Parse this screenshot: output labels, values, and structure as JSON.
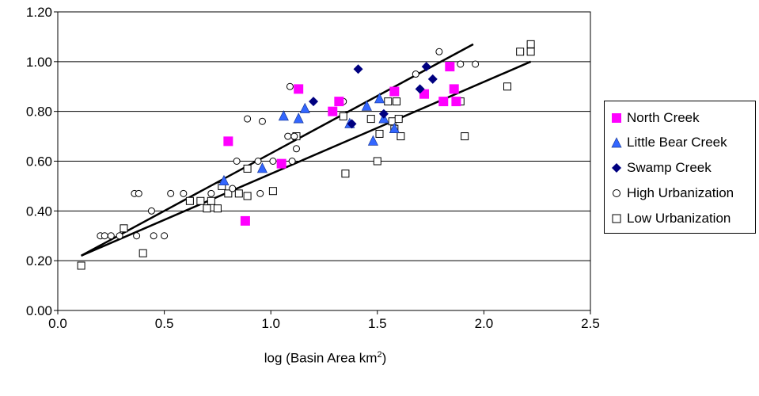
{
  "chart_data": {
    "type": "scatter",
    "xlabel_prefix": "log (Basin Area km",
    "xlabel_sup": "2",
    "xlabel_suffix": ")",
    "ylabel": "",
    "xlim": [
      0,
      2.5
    ],
    "ylim": [
      0,
      1.2
    ],
    "x_ticks": [
      "0.0",
      "0.5",
      "1.0",
      "1.5",
      "2.0",
      "2.5"
    ],
    "y_ticks": [
      "0.00",
      "0.20",
      "0.40",
      "0.60",
      "0.80",
      "1.00",
      "1.20"
    ],
    "grid": "horizontal",
    "legend_position": "right",
    "series": [
      {
        "name": "North Creek",
        "marker": "square-filled",
        "color": "#FF00FF",
        "points": [
          [
            0.8,
            0.68
          ],
          [
            0.88,
            0.36
          ],
          [
            1.05,
            0.59
          ],
          [
            1.13,
            0.89
          ],
          [
            1.29,
            0.8
          ],
          [
            1.32,
            0.84
          ],
          [
            1.58,
            0.88
          ],
          [
            1.72,
            0.87
          ],
          [
            1.81,
            0.84
          ],
          [
            1.84,
            0.98
          ],
          [
            1.86,
            0.89
          ],
          [
            1.87,
            0.84
          ]
        ]
      },
      {
        "name": "Little Bear Creek",
        "marker": "triangle-filled",
        "color": "#3366FF",
        "points": [
          [
            0.78,
            0.52
          ],
          [
            0.96,
            0.57
          ],
          [
            1.06,
            0.78
          ],
          [
            1.13,
            0.77
          ],
          [
            1.16,
            0.81
          ],
          [
            1.37,
            0.75
          ],
          [
            1.45,
            0.82
          ],
          [
            1.48,
            0.68
          ],
          [
            1.51,
            0.85
          ],
          [
            1.53,
            0.77
          ],
          [
            1.58,
            0.73
          ]
        ]
      },
      {
        "name": "Swamp Creek",
        "marker": "diamond-filled",
        "color": "#000080",
        "points": [
          [
            1.2,
            0.84
          ],
          [
            1.38,
            0.75
          ],
          [
            1.41,
            0.97
          ],
          [
            1.53,
            0.79
          ],
          [
            1.7,
            0.89
          ],
          [
            1.73,
            0.98
          ],
          [
            1.76,
            0.93
          ]
        ]
      },
      {
        "name": "High Urbanization",
        "marker": "circle-open",
        "color": "#000000",
        "points": [
          [
            0.2,
            0.3
          ],
          [
            0.22,
            0.3
          ],
          [
            0.25,
            0.3
          ],
          [
            0.29,
            0.3
          ],
          [
            0.36,
            0.47
          ],
          [
            0.37,
            0.3
          ],
          [
            0.38,
            0.47
          ],
          [
            0.44,
            0.4
          ],
          [
            0.45,
            0.3
          ],
          [
            0.5,
            0.3
          ],
          [
            0.53,
            0.47
          ],
          [
            0.59,
            0.47
          ],
          [
            0.72,
            0.47
          ],
          [
            0.82,
            0.49
          ],
          [
            0.84,
            0.6
          ],
          [
            0.89,
            0.77
          ],
          [
            0.94,
            0.6
          ],
          [
            0.95,
            0.47
          ],
          [
            0.96,
            0.76
          ],
          [
            1.01,
            0.6
          ],
          [
            1.08,
            0.7
          ],
          [
            1.09,
            0.9
          ],
          [
            1.1,
            0.6
          ],
          [
            1.11,
            0.7
          ],
          [
            1.12,
            0.65
          ],
          [
            1.34,
            0.84
          ],
          [
            1.68,
            0.95
          ],
          [
            1.79,
            1.04
          ],
          [
            1.89,
            0.99
          ],
          [
            1.96,
            0.99
          ]
        ]
      },
      {
        "name": "Low Urbanization",
        "marker": "square-open",
        "color": "#000000",
        "points": [
          [
            0.11,
            0.18
          ],
          [
            0.31,
            0.33
          ],
          [
            0.4,
            0.23
          ],
          [
            0.62,
            0.44
          ],
          [
            0.67,
            0.44
          ],
          [
            0.7,
            0.41
          ],
          [
            0.72,
            0.44
          ],
          [
            0.75,
            0.41
          ],
          [
            0.77,
            0.5
          ],
          [
            0.8,
            0.47
          ],
          [
            0.85,
            0.47
          ],
          [
            0.89,
            0.46
          ],
          [
            0.89,
            0.57
          ],
          [
            1.01,
            0.48
          ],
          [
            1.12,
            0.7
          ],
          [
            1.34,
            0.78
          ],
          [
            1.35,
            0.55
          ],
          [
            1.47,
            0.77
          ],
          [
            1.5,
            0.6
          ],
          [
            1.51,
            0.71
          ],
          [
            1.55,
            0.84
          ],
          [
            1.57,
            0.76
          ],
          [
            1.58,
            0.73
          ],
          [
            1.59,
            0.84
          ],
          [
            1.6,
            0.77
          ],
          [
            1.61,
            0.7
          ],
          [
            1.87,
            0.84
          ],
          [
            1.89,
            0.84
          ],
          [
            1.91,
            0.7
          ],
          [
            2.11,
            0.9
          ],
          [
            2.17,
            1.04
          ],
          [
            2.22,
            1.07
          ],
          [
            2.22,
            1.04
          ]
        ]
      }
    ],
    "trend_lines": [
      {
        "x": [
          0.11,
          1.95
        ],
        "y": [
          0.22,
          1.07
        ]
      },
      {
        "x": [
          0.11,
          2.22
        ],
        "y": [
          0.22,
          1.0
        ]
      }
    ]
  }
}
